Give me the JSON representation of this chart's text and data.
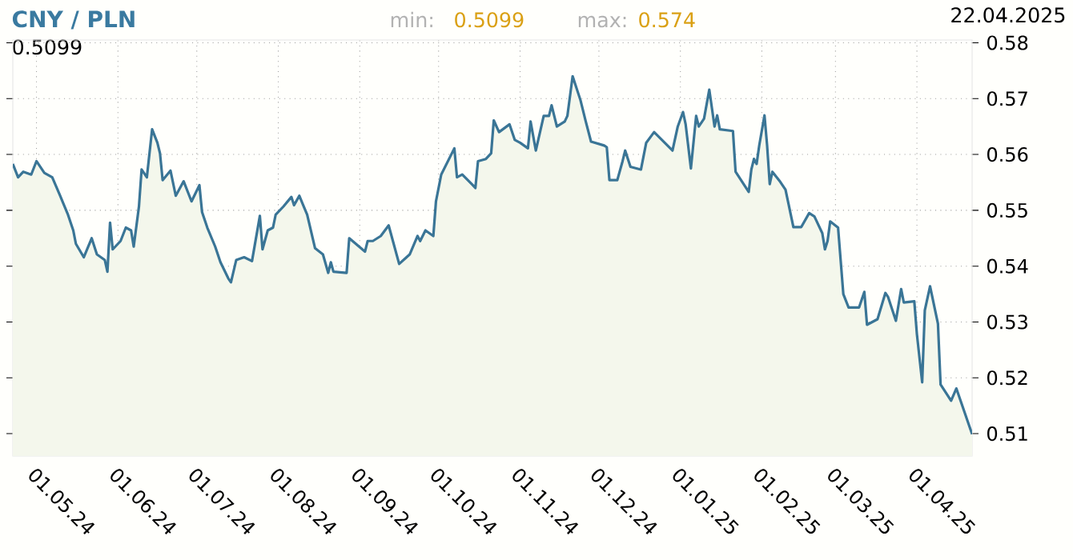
{
  "chart_data": {
    "type": "area",
    "title": "CNY / PLN",
    "subtitle": "22.04.2025",
    "annotations": [
      "min:",
      "0.5099",
      "max:",
      "0.574",
      "0.5099"
    ],
    "color": "#3a7596",
    "grid": true,
    "xlim": [
      "2024-04-22",
      "2025-04-22"
    ],
    "ylim": [
      0.506,
      0.5805
    ],
    "yticks": [
      0.51,
      0.52,
      0.53,
      0.54,
      0.55,
      0.56,
      0.57,
      0.58
    ],
    "xticks": [
      {
        "value": "2024-05-01",
        "label": "01.05.24"
      },
      {
        "value": "2024-06-01",
        "label": "01.06.24"
      },
      {
        "value": "2024-07-01",
        "label": "01.07.24"
      },
      {
        "value": "2024-08-01",
        "label": "01.08.24"
      },
      {
        "value": "2024-09-01",
        "label": "01.09.24"
      },
      {
        "value": "2024-10-01",
        "label": "01.10.24"
      },
      {
        "value": "2024-11-01",
        "label": "01.11.24"
      },
      {
        "value": "2024-12-01",
        "label": "01.12.24"
      },
      {
        "value": "2025-01-01",
        "label": "01.01.25"
      },
      {
        "value": "2025-02-01",
        "label": "01.02.25"
      },
      {
        "value": "2025-03-01",
        "label": "01.03.25"
      },
      {
        "value": "2025-04-01",
        "label": "01.04.25"
      }
    ],
    "x": [
      "2024-04-22",
      "2024-04-24",
      "2024-04-26",
      "2024-04-29",
      "2024-05-01",
      "2024-05-04",
      "2024-05-07",
      "2024-05-10",
      "2024-05-13",
      "2024-05-15",
      "2024-05-16",
      "2024-05-19",
      "2024-05-22",
      "2024-05-24",
      "2024-05-27",
      "2024-05-28",
      "2024-05-29",
      "2024-05-30",
      "2024-06-02",
      "2024-06-04",
      "2024-06-06",
      "2024-06-07",
      "2024-06-09",
      "2024-06-10",
      "2024-06-12",
      "2024-06-13",
      "2024-06-14",
      "2024-06-16",
      "2024-06-17",
      "2024-06-18",
      "2024-06-21",
      "2024-06-23",
      "2024-06-26",
      "2024-06-29",
      "2024-07-02",
      "2024-07-03",
      "2024-07-05",
      "2024-07-08",
      "2024-07-10",
      "2024-07-13",
      "2024-07-14",
      "2024-07-16",
      "2024-07-19",
      "2024-07-22",
      "2024-07-25",
      "2024-07-26",
      "2024-07-28",
      "2024-07-30",
      "2024-07-31",
      "2024-08-03",
      "2024-08-06",
      "2024-08-07",
      "2024-08-09",
      "2024-08-12",
      "2024-08-15",
      "2024-08-18",
      "2024-08-20",
      "2024-08-21",
      "2024-08-22",
      "2024-08-27",
      "2024-08-28",
      "2024-08-31",
      "2024-09-03",
      "2024-09-04",
      "2024-09-06",
      "2024-09-09",
      "2024-09-12",
      "2024-09-16",
      "2024-09-20",
      "2024-09-23",
      "2024-09-24",
      "2024-09-26",
      "2024-09-29",
      "2024-09-30",
      "2024-10-02",
      "2024-10-07",
      "2024-10-08",
      "2024-10-10",
      "2024-10-14",
      "2024-10-15",
      "2024-10-16",
      "2024-10-19",
      "2024-10-21",
      "2024-10-22",
      "2024-10-24",
      "2024-10-28",
      "2024-10-30",
      "2024-11-01",
      "2024-11-04",
      "2024-11-05",
      "2024-11-07",
      "2024-11-10",
      "2024-11-12",
      "2024-11-13",
      "2024-11-15",
      "2024-11-18",
      "2024-11-19",
      "2024-11-21",
      "2024-11-24",
      "2024-11-26",
      "2024-11-28",
      "2024-12-03",
      "2024-12-04",
      "2024-12-05",
      "2024-12-08",
      "2024-12-10",
      "2024-12-11",
      "2024-12-13",
      "2024-12-17",
      "2024-12-19",
      "2024-12-22",
      "2024-12-29",
      "2024-12-31",
      "2025-01-02",
      "2025-01-03",
      "2025-01-05",
      "2025-01-07",
      "2025-01-08",
      "2025-01-10",
      "2025-01-12",
      "2025-01-14",
      "2025-01-15",
      "2025-01-16",
      "2025-01-21",
      "2025-01-22",
      "2025-01-27",
      "2025-01-28",
      "2025-01-29",
      "2025-01-30",
      "2025-01-31",
      "2025-02-02",
      "2025-02-03",
      "2025-02-04",
      "2025-02-05",
      "2025-02-08",
      "2025-02-10",
      "2025-02-13",
      "2025-02-16",
      "2025-02-19",
      "2025-02-21",
      "2025-02-24",
      "2025-02-25",
      "2025-02-26",
      "2025-02-27",
      "2025-03-02",
      "2025-03-04",
      "2025-03-06",
      "2025-03-10",
      "2025-03-12",
      "2025-03-13",
      "2025-03-17",
      "2025-03-20",
      "2025-03-21",
      "2025-03-24",
      "2025-03-26",
      "2025-03-27",
      "2025-03-31",
      "2025-04-01",
      "2025-04-03",
      "2025-04-04",
      "2025-04-06",
      "2025-04-09",
      "2025-04-10",
      "2025-04-14",
      "2025-04-16",
      "2025-04-22"
    ],
    "values": [
      0.5583,
      0.5559,
      0.5569,
      0.5564,
      0.5588,
      0.5567,
      0.5559,
      0.5526,
      0.5492,
      0.5464,
      0.544,
      0.5416,
      0.545,
      0.5421,
      0.5411,
      0.539,
      0.5478,
      0.543,
      0.5445,
      0.5469,
      0.5464,
      0.5435,
      0.5507,
      0.5573,
      0.5559,
      0.5602,
      0.5645,
      0.5621,
      0.5602,
      0.5554,
      0.5571,
      0.5526,
      0.5552,
      0.5516,
      0.5545,
      0.5497,
      0.5469,
      0.5435,
      0.5407,
      0.5378,
      0.5371,
      0.5411,
      0.5416,
      0.5409,
      0.549,
      0.543,
      0.5464,
      0.5469,
      0.5492,
      0.5507,
      0.5524,
      0.5509,
      0.5526,
      0.5492,
      0.5432,
      0.5421,
      0.5388,
      0.5407,
      0.539,
      0.5388,
      0.545,
      0.5438,
      0.5426,
      0.5445,
      0.5445,
      0.5454,
      0.5473,
      0.5404,
      0.5421,
      0.5454,
      0.5445,
      0.5464,
      0.5454,
      0.5516,
      0.5564,
      0.5611,
      0.5559,
      0.5564,
      0.5545,
      0.554,
      0.5588,
      0.5592,
      0.5602,
      0.5661,
      0.564,
      0.5654,
      0.5626,
      0.5621,
      0.5611,
      0.5659,
      0.5607,
      0.5669,
      0.5669,
      0.5688,
      0.565,
      0.5659,
      0.5669,
      0.574,
      0.5697,
      0.5659,
      0.5623,
      0.5616,
      0.5613,
      0.5554,
      0.5554,
      0.5588,
      0.5607,
      0.5578,
      0.5573,
      0.5621,
      0.564,
      0.5607,
      0.565,
      0.5676,
      0.5654,
      0.5575,
      0.5669,
      0.565,
      0.5664,
      0.5716,
      0.565,
      0.567,
      0.5645,
      0.5642,
      0.5569,
      0.5533,
      0.5573,
      0.5592,
      0.5583,
      0.5616,
      0.567,
      0.5616,
      0.5547,
      0.5569,
      0.5551,
      0.5537,
      0.547,
      0.547,
      0.5495,
      0.5489,
      0.5459,
      0.543,
      0.5445,
      0.548,
      0.5469,
      0.535,
      0.5326,
      0.5326,
      0.5354,
      0.5295,
      0.5305,
      0.5352,
      0.5345,
      0.5302,
      0.5359,
      0.5335,
      0.5337,
      0.5278,
      0.5192,
      0.5321,
      0.5364,
      0.5297,
      0.5188,
      0.5159,
      0.5181,
      0.5099
    ]
  }
}
